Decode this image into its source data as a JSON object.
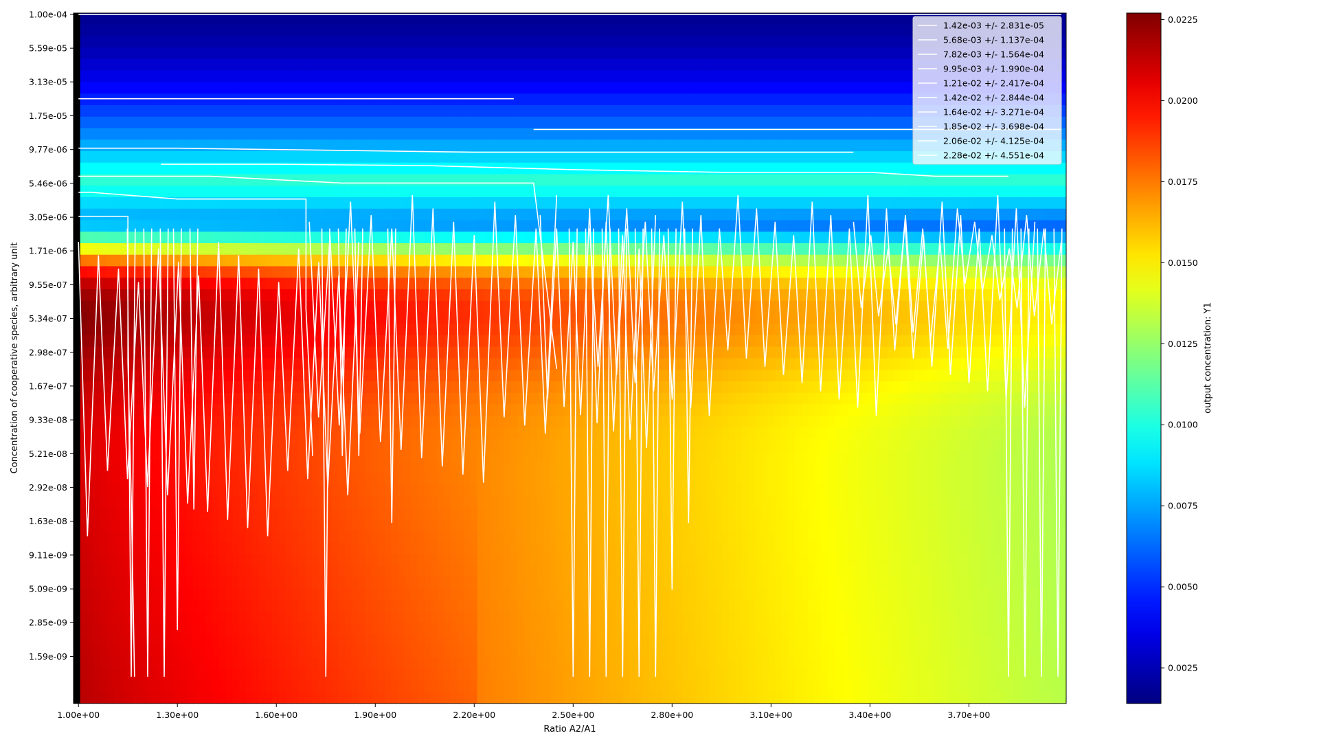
{
  "chart_data": {
    "type": "heatmap",
    "title": "",
    "xlabel": "Ratio A2/A1",
    "ylabel": "Concentration of cooperative species, arbitrary unit",
    "x_scale": "linear",
    "y_scale": "log",
    "xlim": [
      0.985,
      3.995
    ],
    "ylim_log10": [
      -9.15,
      -3.99
    ],
    "x_tick_labels": [
      "1.00e+00",
      "1.30e+00",
      "1.60e+00",
      "1.90e+00",
      "2.20e+00",
      "2.50e+00",
      "2.80e+00",
      "3.10e+00",
      "3.40e+00",
      "3.70e+00"
    ],
    "x_tick_values": [
      1.0,
      1.3,
      1.6,
      1.9,
      2.2,
      2.5,
      2.8,
      3.1,
      3.4,
      3.7
    ],
    "y_tick_labels": [
      "1.00e-04",
      "5.59e-05",
      "3.13e-05",
      "1.75e-05",
      "9.77e-06",
      "5.46e-06",
      "3.05e-06",
      "1.71e-06",
      "9.55e-07",
      "5.34e-07",
      "2.98e-07",
      "1.67e-07",
      "9.33e-08",
      "5.21e-08",
      "2.92e-08",
      "1.63e-08",
      "9.11e-09",
      "5.09e-09",
      "2.85e-09",
      "1.59e-09"
    ],
    "y_tick_values": [
      0.0001,
      5.59e-05,
      3.13e-05,
      1.75e-05,
      9.77e-06,
      5.46e-06,
      3.05e-06,
      1.71e-06,
      9.55e-07,
      5.34e-07,
      2.98e-07,
      1.67e-07,
      9.33e-08,
      5.21e-08,
      2.92e-08,
      1.63e-08,
      9.11e-09,
      5.09e-09,
      2.85e-09,
      1.59e-09
    ],
    "colorbar": {
      "label": "output concentration: Y1",
      "range": [
        0.0014,
        0.0227
      ],
      "colormap": "jet",
      "tick_labels": [
        "0.0025",
        "0.0050",
        "0.0075",
        "0.0100",
        "0.0125",
        "0.0150",
        "0.0175",
        "0.0200",
        "0.0225"
      ],
      "tick_values": [
        0.0025,
        0.005,
        0.0075,
        0.01,
        0.0125,
        0.015,
        0.0175,
        0.02,
        0.0225
      ]
    },
    "legend": {
      "placement": "top-right",
      "entries": [
        "1.42e-03 +/- 2.831e-05",
        "5.68e-03 +/- 1.137e-04",
        "7.82e-03 +/- 1.564e-04",
        "9.95e-03 +/- 1.990e-04",
        "1.21e-02 +/- 2.417e-04",
        "1.42e-02 +/- 2.844e-04",
        "1.64e-02 +/- 3.271e-04",
        "1.85e-02 +/- 3.698e-04",
        "2.06e-02 +/- 4.125e-04",
        "2.28e-02 +/- 4.551e-04"
      ]
    },
    "contour_color": "#ffffff",
    "contours": [
      {
        "x": [
          1.0,
          3.98
        ],
        "y_log10": [
          -4.0,
          -4.0
        ]
      },
      {
        "x": [
          1.0,
          2.32
        ],
        "y_log10": [
          -4.63,
          -4.63
        ]
      },
      {
        "x": [
          2.38,
          3.98
        ],
        "y_log10": [
          -4.86,
          -4.86
        ]
      },
      {
        "x": [
          1.0,
          1.3,
          1.6,
          1.9,
          2.2,
          2.5,
          2.8,
          3.1,
          3.35
        ],
        "y_log10": [
          -5.0,
          -5.0,
          -5.01,
          -5.02,
          -5.03,
          -5.03,
          -5.03,
          -5.03,
          -5.03
        ]
      },
      {
        "x": [
          1.25,
          1.6,
          2.05,
          2.5,
          2.95,
          3.4,
          3.6,
          3.82
        ],
        "y_log10": [
          -5.12,
          -5.12,
          -5.13,
          -5.16,
          -5.18,
          -5.18,
          -5.21,
          -5.21
        ]
      },
      {
        "x": [
          1.0,
          1.4,
          1.8,
          2.12,
          2.38,
          2.41,
          2.43,
          2.45
        ],
        "y_log10": [
          -5.21,
          -5.21,
          -5.26,
          -5.26,
          -5.26,
          -5.85,
          -6.25,
          -6.65
        ]
      },
      {
        "x": [
          1.0,
          1.04,
          1.3,
          1.5,
          1.69,
          1.69,
          1.7,
          1.71
        ],
        "y_log10": [
          -5.33,
          -5.33,
          -5.38,
          -5.38,
          -5.38,
          -6.2,
          -6.7,
          -7.3
        ]
      },
      {
        "x": [
          1.0,
          1.15,
          1.15,
          1.16,
          1.17
        ],
        "y_log10": [
          -5.51,
          -5.51,
          -6.6,
          -7.6,
          -8.95
        ]
      }
    ],
    "sawtooth_bands": [
      {
        "x_start": 1.0,
        "x_end": 1.85,
        "teeth": 14,
        "y_top_log10": -5.7,
        "y_bottom_log10": -7.9
      },
      {
        "x_start": 1.7,
        "x_end": 2.45,
        "teeth": 12,
        "y_top_log10": -5.35,
        "y_bottom_log10": -7.5
      },
      {
        "x_start": 2.4,
        "x_end": 2.75,
        "teeth": 7,
        "y_top_log10": -5.45,
        "y_bottom_log10": -7.3
      },
      {
        "x_start": 2.55,
        "x_end": 3.9,
        "teeth": 24,
        "y_top_log10": -5.35,
        "y_bottom_log10": -7.0
      },
      {
        "x_start": 3.35,
        "x_end": 3.98,
        "teeth": 12,
        "y_top_log10": -5.45,
        "y_bottom_log10": -6.5
      }
    ],
    "deep_spikes": [
      {
        "x": 1.16,
        "y_bottom_log10": -8.95
      },
      {
        "x": 1.21,
        "y_bottom_log10": -8.95
      },
      {
        "x": 1.26,
        "y_bottom_log10": -8.95
      },
      {
        "x": 1.3,
        "y_bottom_log10": -8.6
      },
      {
        "x": 1.35,
        "y_bottom_log10": -7.7
      },
      {
        "x": 1.75,
        "y_bottom_log10": -8.95
      },
      {
        "x": 1.8,
        "y_bottom_log10": -7.3
      },
      {
        "x": 1.85,
        "y_bottom_log10": -7.3
      },
      {
        "x": 1.95,
        "y_bottom_log10": -7.8
      },
      {
        "x": 2.5,
        "y_bottom_log10": -8.95
      },
      {
        "x": 2.55,
        "y_bottom_log10": -8.95
      },
      {
        "x": 2.6,
        "y_bottom_log10": -8.95
      },
      {
        "x": 2.65,
        "y_bottom_log10": -8.95
      },
      {
        "x": 2.7,
        "y_bottom_log10": -8.95
      },
      {
        "x": 2.75,
        "y_bottom_log10": -8.95
      },
      {
        "x": 2.8,
        "y_bottom_log10": -8.3
      },
      {
        "x": 2.85,
        "y_bottom_log10": -7.8
      },
      {
        "x": 3.82,
        "y_bottom_log10": -8.95
      },
      {
        "x": 3.87,
        "y_bottom_log10": -8.95
      },
      {
        "x": 3.92,
        "y_bottom_log10": -8.95
      },
      {
        "x": 3.97,
        "y_bottom_log10": -8.95
      }
    ]
  }
}
